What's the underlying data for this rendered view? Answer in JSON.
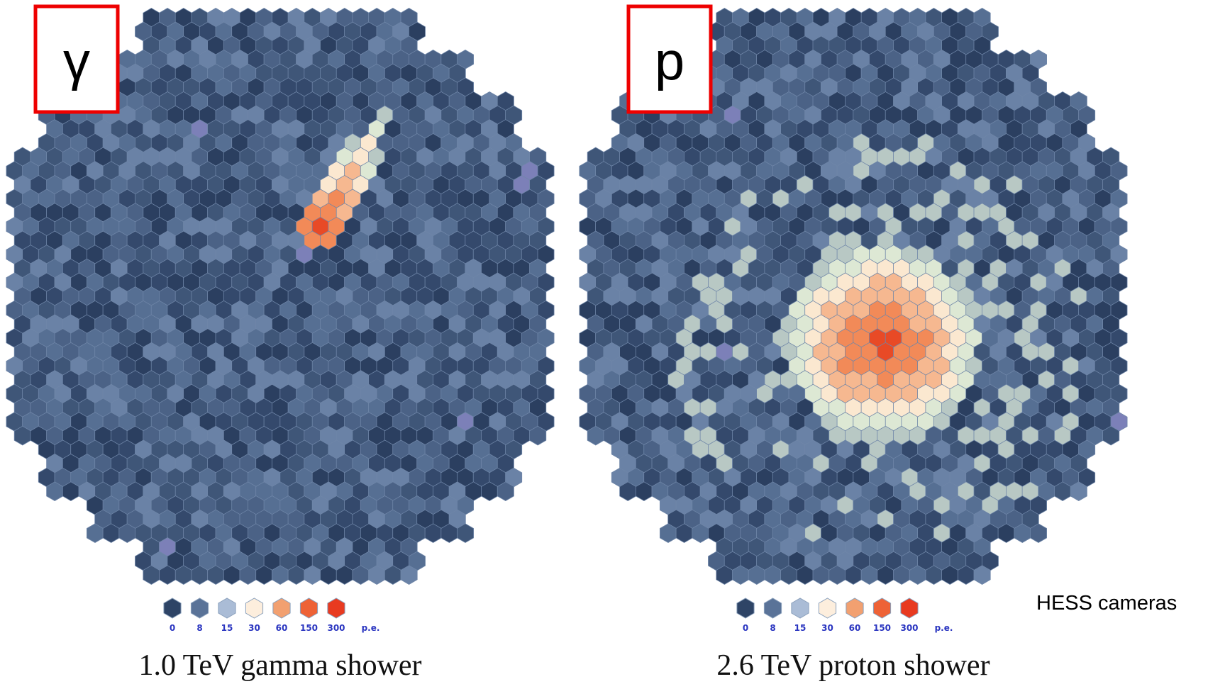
{
  "panels": [
    {
      "label": "γ",
      "legend": [
        "0",
        "8",
        "15",
        "30",
        "60",
        "150",
        "300",
        "p.e."
      ],
      "caption": "1.0 TeV gamma shower"
    },
    {
      "label": "p",
      "legend": [
        "0",
        "8",
        "15",
        "30",
        "60",
        "150",
        "300",
        "p.e."
      ],
      "caption": "2.6 TeV proton shower"
    }
  ],
  "note": "HESS cameras"
}
